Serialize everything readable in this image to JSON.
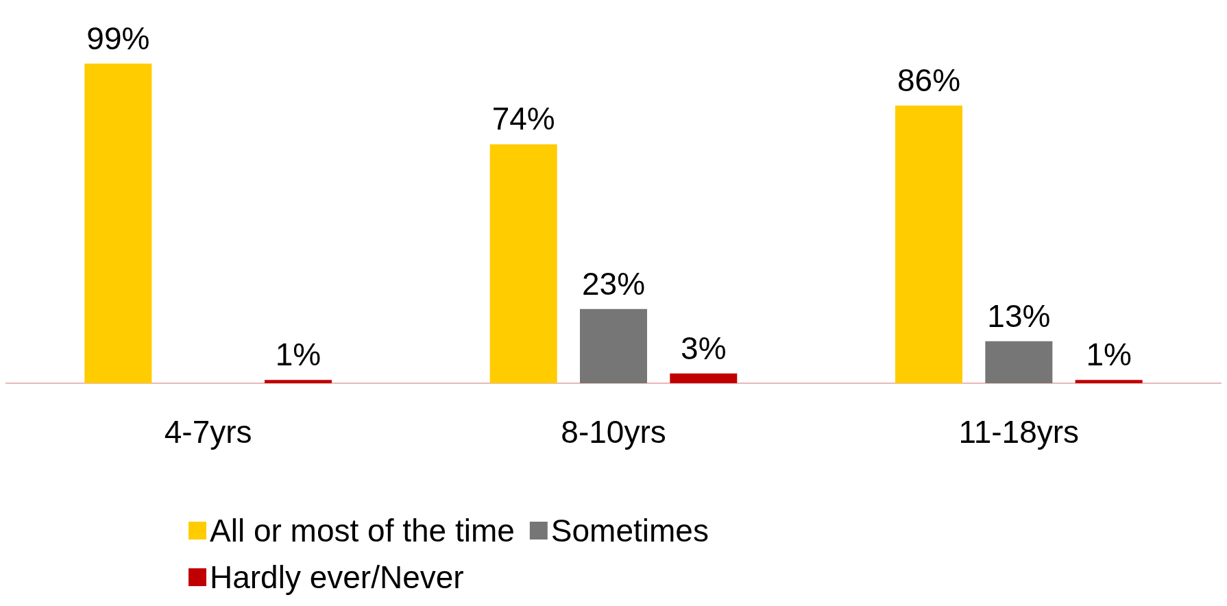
{
  "chart_data": {
    "type": "bar",
    "categories": [
      "4-7yrs",
      "8-10yrs",
      "11-18yrs"
    ],
    "tick_labels": "x",
    "grid": false,
    "legend": "bottom",
    "series": [
      {
        "name": "All or most of the time",
        "color": "#ffcc00",
        "values": [
          99,
          74,
          86
        ],
        "value_labels": [
          "99%",
          "74%",
          "86%"
        ]
      },
      {
        "name": "Sometimes",
        "color": "#767676",
        "values": [
          null,
          23,
          13
        ],
        "value_labels": [
          null,
          "23%",
          "13%"
        ]
      },
      {
        "name": "Hardly ever/Never",
        "color": "#c00000",
        "values": [
          1,
          3,
          1
        ],
        "value_labels": [
          "1%",
          "3%",
          "1%"
        ]
      }
    ]
  }
}
